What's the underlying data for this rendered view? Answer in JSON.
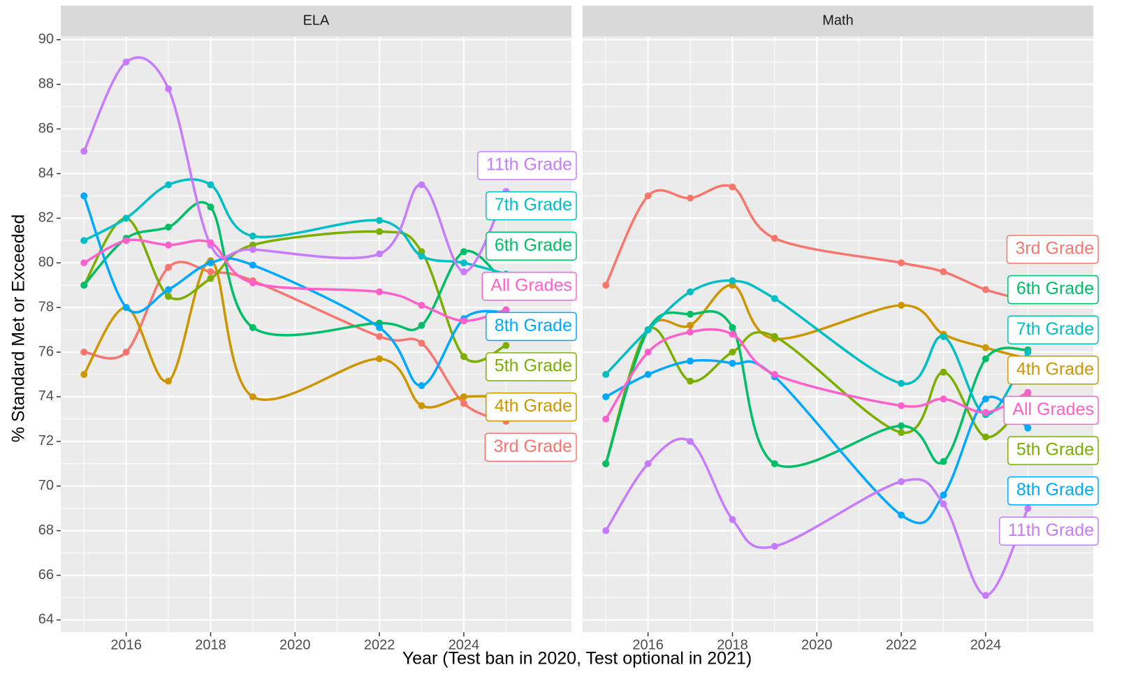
{
  "chart_data": [
    {
      "type": "line",
      "title": "ELA",
      "xlabel": "Year (Test ban in 2020, Test optional in 2021)",
      "ylabel": "% Standard Met or Exceeded",
      "x": [
        2015,
        2016,
        2017,
        2018,
        2019,
        2022,
        2023,
        2024,
        2025
      ],
      "xlim": [
        2014.45,
        2026.55
      ],
      "xticks": [
        2016,
        2018,
        2020,
        2022,
        2024
      ],
      "ylim": [
        63.45,
        90.15
      ],
      "yticks": [
        64,
        66,
        68,
        70,
        72,
        74,
        76,
        78,
        80,
        82,
        84,
        86,
        88,
        90
      ],
      "grid": true,
      "series": [
        {
          "name": "3rd Grade",
          "color": "#F8766D",
          "values": [
            76,
            76,
            79.8,
            79.6,
            79.2,
            76.7,
            76.4,
            73.7,
            72.9
          ]
        },
        {
          "name": "4th Grade",
          "color": "#CD9600",
          "values": [
            75,
            78,
            74.7,
            80.1,
            74,
            75.7,
            73.6,
            74,
            74
          ]
        },
        {
          "name": "5th Grade",
          "color": "#7CAE00",
          "values": [
            79,
            82,
            78.5,
            79.3,
            80.8,
            81.4,
            80.5,
            75.8,
            76.3
          ]
        },
        {
          "name": "6th Grade",
          "color": "#00BE67",
          "values": [
            79,
            81.1,
            81.6,
            82.5,
            77.1,
            77.3,
            77.2,
            80.5,
            79
          ]
        },
        {
          "name": "7th Grade",
          "color": "#00BFC4",
          "values": [
            81,
            82,
            83.5,
            83.5,
            81.2,
            81.9,
            80.3,
            80,
            79.5
          ]
        },
        {
          "name": "8th Grade",
          "color": "#00A9FF",
          "values": [
            83,
            78,
            78.8,
            80,
            79.9,
            77.1,
            74.5,
            77.5,
            77.8
          ]
        },
        {
          "name": "11th Grade",
          "color": "#C77CFF",
          "values": [
            85,
            89,
            87.8,
            80.8,
            80.6,
            80.4,
            83.5,
            79.6,
            83.2
          ]
        },
        {
          "name": "All Grades",
          "color": "#FF61CC",
          "values": [
            80,
            81,
            80.8,
            80.9,
            79.1,
            78.7,
            78.1,
            77.4,
            77.9
          ]
        }
      ]
    },
    {
      "type": "line",
      "title": "Math",
      "x": [
        2015,
        2016,
        2017,
        2018,
        2019,
        2022,
        2023,
        2024,
        2025
      ],
      "xlim": [
        2014.45,
        2026.55
      ],
      "xticks": [
        2016,
        2018,
        2020,
        2022,
        2024
      ],
      "ylim": [
        63.45,
        90.15
      ],
      "yticks": [
        64,
        66,
        68,
        70,
        72,
        74,
        76,
        78,
        80,
        82,
        84,
        86,
        88,
        90
      ],
      "grid": true,
      "series": [
        {
          "name": "3rd Grade",
          "color": "#F8766D",
          "values": [
            79,
            83,
            82.9,
            83.4,
            81.1,
            80,
            79.6,
            78.8,
            78.3
          ]
        },
        {
          "name": "4th Grade",
          "color": "#CD9600",
          "values": [
            71,
            77,
            77.2,
            79,
            76.6,
            78.1,
            76.8,
            76.2,
            75.7
          ]
        },
        {
          "name": "5th Grade",
          "color": "#7CAE00",
          "values": [
            71,
            77,
            74.7,
            76,
            76.7,
            72.4,
            75.1,
            72.2,
            74
          ]
        },
        {
          "name": "6th Grade",
          "color": "#00BE67",
          "values": [
            71,
            77,
            77.7,
            77.1,
            71,
            72.7,
            71.1,
            75.7,
            76.1
          ]
        },
        {
          "name": "7th Grade",
          "color": "#00BFC4",
          "values": [
            75,
            77,
            78.7,
            79.2,
            78.4,
            74.6,
            76.7,
            73.2,
            76
          ]
        },
        {
          "name": "8th Grade",
          "color": "#00A9FF",
          "values": [
            74,
            75,
            75.6,
            75.5,
            74.9,
            68.7,
            69.6,
            73.9,
            72.6
          ]
        },
        {
          "name": "11th Grade",
          "color": "#C77CFF",
          "values": [
            68,
            71,
            72,
            68.5,
            67.3,
            70.2,
            69.2,
            65.1,
            69
          ]
        },
        {
          "name": "All Grades",
          "color": "#FF61CC",
          "values": [
            73,
            76,
            76.9,
            76.8,
            75,
            73.6,
            73.9,
            73.3,
            74.2
          ]
        }
      ]
    }
  ]
}
